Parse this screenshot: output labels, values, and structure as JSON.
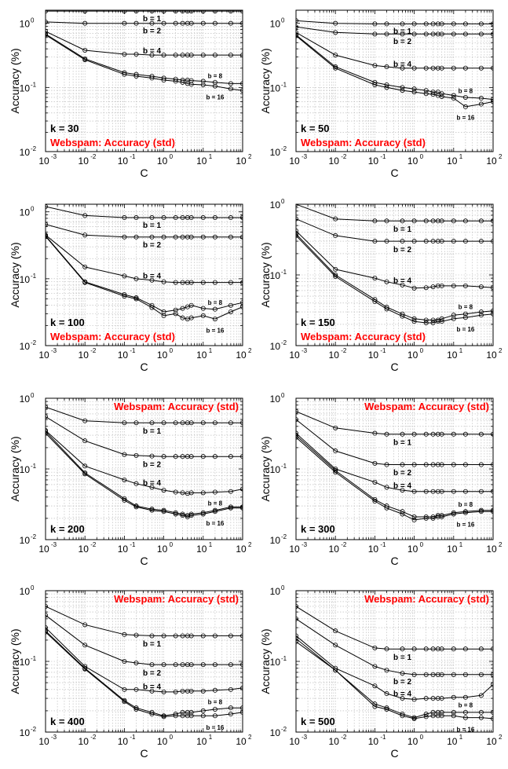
{
  "colors": {
    "title": "#ff0000",
    "line": "#000000",
    "grid": "#b3b3b3"
  },
  "figure": {
    "xlabel": "C",
    "ylabel": "Accuracy (%)",
    "x_ticks": [
      "-3",
      "-2",
      "-1",
      "0",
      "1",
      "2"
    ],
    "y_ticks": [
      "-2",
      "-1",
      "0"
    ],
    "tick_base": "10"
  },
  "chart_data": [
    {
      "type": "line",
      "k_label": "k = 30",
      "title": "Webspam: Accuracy (std)",
      "title_pos": "bottom",
      "xscale": "log",
      "yscale": "log",
      "xlim": [
        0.001,
        100
      ],
      "ylim": [
        0.01,
        1.6
      ],
      "grid": true,
      "x": [
        0.001,
        0.01,
        0.1,
        0.2,
        0.5,
        1,
        2,
        3,
        4,
        5,
        10,
        20,
        50,
        100
      ],
      "series": [
        {
          "name": "b = 1",
          "values": [
            1.55,
            1.55,
            1.55,
            1.55,
            1.55,
            1.55,
            1.55,
            1.55,
            1.55,
            1.55,
            1.55,
            1.55,
            1.55,
            1.55
          ]
        },
        {
          "name": "b = 2",
          "values": [
            1.05,
            1.0,
            1.0,
            1.0,
            1.0,
            1.0,
            1.0,
            1.0,
            1.0,
            1.0,
            1.0,
            1.0,
            1.0,
            1.0
          ]
        },
        {
          "name": "b = 4",
          "values": [
            0.75,
            0.38,
            0.33,
            0.33,
            0.32,
            0.32,
            0.32,
            0.32,
            0.32,
            0.32,
            0.32,
            0.32,
            0.32,
            0.32
          ]
        },
        {
          "name": "b = 8",
          "values": [
            0.68,
            0.28,
            0.17,
            0.16,
            0.15,
            0.14,
            0.135,
            0.13,
            0.13,
            0.128,
            0.125,
            0.12,
            0.115,
            0.115
          ]
        },
        {
          "name": "b = 16",
          "values": [
            0.66,
            0.27,
            0.16,
            0.15,
            0.14,
            0.13,
            0.125,
            0.12,
            0.115,
            0.112,
            0.11,
            0.105,
            0.095,
            0.09
          ]
        }
      ]
    },
    {
      "type": "line",
      "k_label": "k = 50",
      "title": "Webspam: Accuracy (std)",
      "title_pos": "bottom",
      "xscale": "log",
      "yscale": "log",
      "xlim": [
        0.001,
        100
      ],
      "ylim": [
        0.01,
        1.6
      ],
      "grid": true,
      "x": [
        0.001,
        0.01,
        0.1,
        0.2,
        0.5,
        1,
        2,
        3,
        4,
        5,
        10,
        20,
        50,
        100
      ],
      "series": [
        {
          "name": "b = 1",
          "values": [
            1.1,
            1.0,
            0.98,
            0.98,
            0.98,
            0.98,
            0.98,
            0.98,
            0.98,
            0.98,
            0.98,
            0.98,
            0.98,
            0.98
          ]
        },
        {
          "name": "b = 2",
          "values": [
            0.88,
            0.72,
            0.68,
            0.68,
            0.68,
            0.68,
            0.68,
            0.68,
            0.68,
            0.68,
            0.68,
            0.68,
            0.68,
            0.68
          ]
        },
        {
          "name": "b = 4",
          "values": [
            0.72,
            0.32,
            0.22,
            0.21,
            0.2,
            0.2,
            0.2,
            0.2,
            0.2,
            0.2,
            0.2,
            0.2,
            0.2,
            0.2
          ]
        },
        {
          "name": "b = 8",
          "values": [
            0.66,
            0.21,
            0.12,
            0.11,
            0.1,
            0.095,
            0.09,
            0.085,
            0.085,
            0.08,
            0.075,
            0.07,
            0.068,
            0.065
          ]
        },
        {
          "name": "b = 16",
          "values": [
            0.64,
            0.2,
            0.11,
            0.1,
            0.09,
            0.085,
            0.08,
            0.078,
            0.075,
            0.072,
            0.068,
            0.05,
            0.055,
            0.06
          ]
        }
      ]
    },
    {
      "type": "line",
      "k_label": "k = 100",
      "title": "Webspam: Accuracy (std)",
      "title_pos": "bottom",
      "xscale": "log",
      "yscale": "log",
      "xlim": [
        0.001,
        100
      ],
      "ylim": [
        0.01,
        1.3
      ],
      "grid": true,
      "x": [
        0.001,
        0.01,
        0.1,
        0.2,
        0.5,
        1,
        2,
        3,
        4,
        5,
        10,
        20,
        50,
        100
      ],
      "series": [
        {
          "name": "b = 1",
          "values": [
            1.2,
            0.88,
            0.82,
            0.82,
            0.82,
            0.82,
            0.82,
            0.82,
            0.82,
            0.82,
            0.82,
            0.82,
            0.82,
            0.82
          ]
        },
        {
          "name": "b = 2",
          "values": [
            0.65,
            0.45,
            0.42,
            0.42,
            0.42,
            0.42,
            0.42,
            0.42,
            0.42,
            0.42,
            0.42,
            0.42,
            0.42,
            0.42
          ]
        },
        {
          "name": "b = 4",
          "values": [
            0.45,
            0.15,
            0.11,
            0.1,
            0.095,
            0.09,
            0.088,
            0.088,
            0.088,
            0.088,
            0.088,
            0.088,
            0.088,
            0.088
          ]
        },
        {
          "name": "b = 8",
          "values": [
            0.44,
            0.09,
            0.058,
            0.052,
            0.04,
            0.032,
            0.034,
            0.036,
            0.038,
            0.04,
            0.036,
            0.035,
            0.04,
            0.044
          ]
        },
        {
          "name": "b = 16",
          "values": [
            0.43,
            0.088,
            0.055,
            0.05,
            0.037,
            0.028,
            0.03,
            0.026,
            0.025,
            0.026,
            0.028,
            0.025,
            0.032,
            0.038
          ]
        }
      ]
    },
    {
      "type": "line",
      "k_label": "k = 150",
      "title": "Webspam: Accuracy (std)",
      "title_pos": "bottom",
      "xscale": "log",
      "yscale": "log",
      "xlim": [
        0.001,
        100
      ],
      "ylim": [
        0.01,
        1.0
      ],
      "grid": true,
      "x": [
        0.001,
        0.01,
        0.1,
        0.2,
        0.5,
        1,
        2,
        3,
        4,
        5,
        10,
        20,
        50,
        100
      ],
      "series": [
        {
          "name": "b = 1",
          "values": [
            1.0,
            0.62,
            0.58,
            0.58,
            0.58,
            0.58,
            0.58,
            0.58,
            0.58,
            0.58,
            0.58,
            0.58,
            0.58,
            0.58
          ]
        },
        {
          "name": "b = 2",
          "values": [
            0.62,
            0.36,
            0.3,
            0.3,
            0.3,
            0.3,
            0.3,
            0.3,
            0.3,
            0.3,
            0.3,
            0.3,
            0.3,
            0.3
          ]
        },
        {
          "name": "b = 4",
          "values": [
            0.42,
            0.12,
            0.09,
            0.08,
            0.072,
            0.065,
            0.066,
            0.068,
            0.07,
            0.07,
            0.07,
            0.07,
            0.068,
            0.066
          ]
        },
        {
          "name": "b = 8",
          "values": [
            0.38,
            0.1,
            0.045,
            0.035,
            0.028,
            0.024,
            0.023,
            0.023,
            0.023,
            0.024,
            0.027,
            0.028,
            0.03,
            0.031
          ]
        },
        {
          "name": "b = 16",
          "values": [
            0.36,
            0.095,
            0.042,
            0.033,
            0.026,
            0.022,
            0.021,
            0.021,
            0.022,
            0.022,
            0.024,
            0.025,
            0.027,
            0.028
          ]
        }
      ]
    },
    {
      "type": "line",
      "k_label": "k = 200",
      "title": "Webspam: Accuracy (std)",
      "title_pos": "top",
      "xscale": "log",
      "yscale": "log",
      "xlim": [
        0.001,
        100
      ],
      "ylim": [
        0.01,
        1.0
      ],
      "grid": true,
      "x": [
        0.001,
        0.01,
        0.1,
        0.2,
        0.5,
        1,
        2,
        3,
        4,
        5,
        10,
        20,
        50,
        100
      ],
      "series": [
        {
          "name": "b = 1",
          "values": [
            0.75,
            0.48,
            0.45,
            0.45,
            0.45,
            0.45,
            0.45,
            0.45,
            0.45,
            0.45,
            0.45,
            0.45,
            0.45,
            0.45
          ]
        },
        {
          "name": "b = 2",
          "values": [
            0.55,
            0.25,
            0.16,
            0.155,
            0.152,
            0.15,
            0.15,
            0.15,
            0.15,
            0.15,
            0.15,
            0.15,
            0.15,
            0.15
          ]
        },
        {
          "name": "b = 4",
          "values": [
            0.35,
            0.11,
            0.07,
            0.062,
            0.055,
            0.05,
            0.047,
            0.046,
            0.045,
            0.046,
            0.046,
            0.047,
            0.048,
            0.052
          ]
        },
        {
          "name": "b = 8",
          "values": [
            0.34,
            0.088,
            0.038,
            0.03,
            0.027,
            0.026,
            0.024,
            0.023,
            0.022,
            0.023,
            0.024,
            0.026,
            0.029,
            0.029
          ]
        },
        {
          "name": "b = 16",
          "values": [
            0.32,
            0.085,
            0.036,
            0.029,
            0.026,
            0.025,
            0.023,
            0.022,
            0.021,
            0.022,
            0.023,
            0.025,
            0.028,
            0.028
          ]
        }
      ]
    },
    {
      "type": "line",
      "k_label": "k = 300",
      "title": "Webspam: Accuracy (std)",
      "title_pos": "top",
      "xscale": "log",
      "yscale": "log",
      "xlim": [
        0.001,
        100
      ],
      "ylim": [
        0.01,
        1.0
      ],
      "grid": true,
      "x": [
        0.001,
        0.01,
        0.1,
        0.2,
        0.5,
        1,
        2,
        3,
        4,
        5,
        10,
        20,
        50,
        100
      ],
      "series": [
        {
          "name": "b = 1",
          "values": [
            0.65,
            0.38,
            0.32,
            0.31,
            0.31,
            0.31,
            0.31,
            0.31,
            0.31,
            0.31,
            0.31,
            0.31,
            0.31,
            0.31
          ]
        },
        {
          "name": "b = 2",
          "values": [
            0.5,
            0.18,
            0.12,
            0.115,
            0.115,
            0.115,
            0.115,
            0.115,
            0.115,
            0.115,
            0.115,
            0.115,
            0.115,
            0.115
          ]
        },
        {
          "name": "b = 4",
          "values": [
            0.32,
            0.1,
            0.065,
            0.055,
            0.05,
            0.048,
            0.048,
            0.048,
            0.048,
            0.048,
            0.048,
            0.048,
            0.048,
            0.048
          ]
        },
        {
          "name": "b = 8",
          "values": [
            0.3,
            0.095,
            0.037,
            0.03,
            0.025,
            0.021,
            0.021,
            0.021,
            0.022,
            0.022,
            0.024,
            0.025,
            0.026,
            0.026
          ]
        },
        {
          "name": "b = 16",
          "values": [
            0.28,
            0.09,
            0.035,
            0.028,
            0.023,
            0.019,
            0.02,
            0.02,
            0.021,
            0.021,
            0.023,
            0.024,
            0.025,
            0.025
          ]
        }
      ]
    },
    {
      "type": "line",
      "k_label": "k = 400",
      "title": "Webspam: Accuracy (std)",
      "title_pos": "top",
      "xscale": "log",
      "yscale": "log",
      "xlim": [
        0.001,
        100
      ],
      "ylim": [
        0.01,
        1.0
      ],
      "grid": true,
      "x": [
        0.001,
        0.01,
        0.1,
        0.2,
        0.5,
        1,
        2,
        3,
        4,
        5,
        10,
        20,
        50,
        100
      ],
      "series": [
        {
          "name": "b = 1",
          "values": [
            0.6,
            0.33,
            0.24,
            0.235,
            0.23,
            0.23,
            0.23,
            0.23,
            0.23,
            0.23,
            0.23,
            0.23,
            0.23,
            0.23
          ]
        },
        {
          "name": "b = 2",
          "values": [
            0.45,
            0.17,
            0.1,
            0.095,
            0.09,
            0.09,
            0.09,
            0.09,
            0.09,
            0.09,
            0.09,
            0.09,
            0.09,
            0.09
          ]
        },
        {
          "name": "b = 4",
          "values": [
            0.3,
            0.085,
            0.04,
            0.04,
            0.038,
            0.037,
            0.037,
            0.038,
            0.038,
            0.038,
            0.038,
            0.039,
            0.04,
            0.042
          ]
        },
        {
          "name": "b = 8",
          "values": [
            0.27,
            0.08,
            0.028,
            0.022,
            0.019,
            0.017,
            0.018,
            0.019,
            0.019,
            0.019,
            0.02,
            0.021,
            0.022,
            0.022
          ]
        },
        {
          "name": "b = 16",
          "values": [
            0.26,
            0.078,
            0.027,
            0.021,
            0.018,
            0.0165,
            0.017,
            0.017,
            0.017,
            0.017,
            0.017,
            0.017,
            0.018,
            0.019
          ]
        }
      ]
    },
    {
      "type": "line",
      "k_label": "k = 500",
      "title": "Webspam: Accuracy (std)",
      "title_pos": "top",
      "xscale": "log",
      "yscale": "log",
      "xlim": [
        0.001,
        100
      ],
      "ylim": [
        0.01,
        1.0
      ],
      "grid": true,
      "x": [
        0.001,
        0.01,
        0.1,
        0.2,
        0.5,
        1,
        2,
        3,
        4,
        5,
        10,
        20,
        50,
        100
      ],
      "series": [
        {
          "name": "b = 1",
          "values": [
            0.6,
            0.27,
            0.155,
            0.15,
            0.15,
            0.15,
            0.15,
            0.15,
            0.15,
            0.15,
            0.15,
            0.15,
            0.15,
            0.15
          ]
        },
        {
          "name": "b = 2",
          "values": [
            0.4,
            0.17,
            0.085,
            0.075,
            0.068,
            0.065,
            0.065,
            0.065,
            0.065,
            0.065,
            0.065,
            0.065,
            0.065,
            0.065
          ]
        },
        {
          "name": "b = 4",
          "values": [
            0.23,
            0.08,
            0.045,
            0.035,
            0.03,
            0.029,
            0.03,
            0.03,
            0.03,
            0.03,
            0.031,
            0.031,
            0.033,
            0.047
          ]
        },
        {
          "name": "b = 8",
          "values": [
            0.21,
            0.075,
            0.025,
            0.022,
            0.018,
            0.016,
            0.018,
            0.019,
            0.019,
            0.019,
            0.019,
            0.019,
            0.019,
            0.019
          ]
        },
        {
          "name": "b = 16",
          "values": [
            0.19,
            0.075,
            0.023,
            0.021,
            0.017,
            0.0155,
            0.0165,
            0.017,
            0.017,
            0.017,
            0.017,
            0.016,
            0.016,
            0.0155
          ]
        }
      ]
    }
  ]
}
